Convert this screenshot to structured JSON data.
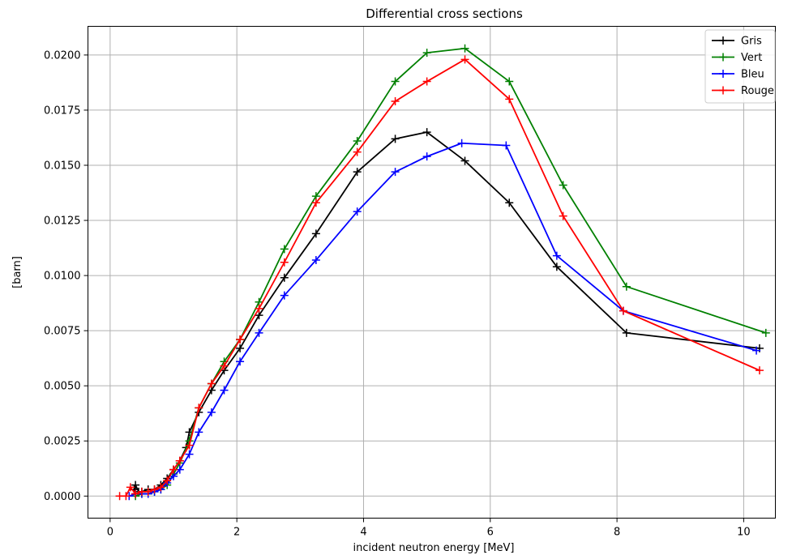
{
  "chart_data": {
    "type": "line",
    "title": "Differential cross sections",
    "xlabel": "incident neutron energy [MeV]",
    "ylabel": "[barn]",
    "xlim": [
      -0.35,
      10.5
    ],
    "ylim": [
      -0.001,
      0.0213
    ],
    "xticks": [
      0,
      2,
      4,
      6,
      8,
      10
    ],
    "xtick_labels": [
      "0",
      "2",
      "4",
      "6",
      "8",
      "10"
    ],
    "yticks": [
      0,
      0.0025,
      0.005,
      0.0075,
      0.01,
      0.0125,
      0.015,
      0.0175,
      0.02
    ],
    "ytick_labels": [
      "0.0000",
      "0.0025",
      "0.0050",
      "0.0075",
      "0.0100",
      "0.0125",
      "0.0150",
      "0.0175",
      "0.0200"
    ],
    "grid": true,
    "legend_position": "top-right",
    "marker": "plus",
    "series": [
      {
        "name": "Gris",
        "color": "#000000",
        "points": [
          [
            0.38,
            0.0003
          ],
          [
            0.4,
            0.0005
          ],
          [
            0.45,
            0.0002
          ],
          [
            0.5,
            0.0002
          ],
          [
            0.6,
            0.0003
          ],
          [
            0.7,
            0.0003
          ],
          [
            0.8,
            0.0005
          ],
          [
            0.9,
            0.0008
          ],
          [
            1.0,
            0.0012
          ],
          [
            1.1,
            0.0016
          ],
          [
            1.2,
            0.0022
          ],
          [
            1.25,
            0.0029
          ],
          [
            1.4,
            0.0038
          ],
          [
            1.6,
            0.0048
          ],
          [
            1.8,
            0.0057
          ],
          [
            2.05,
            0.0067
          ],
          [
            2.35,
            0.0082
          ],
          [
            2.75,
            0.0099
          ],
          [
            3.25,
            0.0119
          ],
          [
            3.9,
            0.0147
          ],
          [
            4.5,
            0.0162
          ],
          [
            5.0,
            0.0165
          ],
          [
            5.6,
            0.0152
          ],
          [
            6.3,
            0.0133
          ],
          [
            7.05,
            0.0104
          ],
          [
            8.15,
            0.0074
          ],
          [
            10.25,
            0.0067
          ]
        ]
      },
      {
        "name": "Vert",
        "color": "#008000",
        "points": [
          [
            0.4,
            0.0
          ],
          [
            0.5,
            0.0001
          ],
          [
            0.6,
            0.0001
          ],
          [
            0.7,
            0.0002
          ],
          [
            0.8,
            0.0003
          ],
          [
            0.9,
            0.0005
          ],
          [
            1.0,
            0.001
          ],
          [
            1.1,
            0.0015
          ],
          [
            1.25,
            0.0025
          ],
          [
            1.4,
            0.004
          ],
          [
            1.6,
            0.0051
          ],
          [
            1.8,
            0.0061
          ],
          [
            2.05,
            0.0071
          ],
          [
            2.35,
            0.0088
          ],
          [
            2.75,
            0.0112
          ],
          [
            3.25,
            0.0136
          ],
          [
            3.9,
            0.0161
          ],
          [
            4.5,
            0.0188
          ],
          [
            5.0,
            0.0201
          ],
          [
            5.6,
            0.0203
          ],
          [
            6.3,
            0.0188
          ],
          [
            7.15,
            0.0141
          ],
          [
            8.15,
            0.0095
          ],
          [
            10.35,
            0.0074
          ]
        ]
      },
      {
        "name": "Bleu",
        "color": "#0000ff",
        "points": [
          [
            0.3,
            0.0
          ],
          [
            0.4,
            0.0001
          ],
          [
            0.5,
            0.0001
          ],
          [
            0.6,
            0.0001
          ],
          [
            0.7,
            0.0002
          ],
          [
            0.8,
            0.0003
          ],
          [
            0.9,
            0.0006
          ],
          [
            1.0,
            0.0009
          ],
          [
            1.1,
            0.0012
          ],
          [
            1.25,
            0.0019
          ],
          [
            1.4,
            0.0029
          ],
          [
            1.6,
            0.0038
          ],
          [
            1.8,
            0.0048
          ],
          [
            2.05,
            0.0061
          ],
          [
            2.35,
            0.0074
          ],
          [
            2.75,
            0.0091
          ],
          [
            3.25,
            0.0107
          ],
          [
            3.9,
            0.0129
          ],
          [
            4.5,
            0.0147
          ],
          [
            5.0,
            0.0154
          ],
          [
            5.55,
            0.016
          ],
          [
            6.25,
            0.0159
          ],
          [
            7.05,
            0.0109
          ],
          [
            8.1,
            0.0084
          ],
          [
            10.2,
            0.0066
          ]
        ]
      },
      {
        "name": "Rouge",
        "color": "#ff0000",
        "points": [
          [
            0.15,
            0.0
          ],
          [
            0.25,
            0.0
          ],
          [
            0.32,
            0.0004
          ],
          [
            0.4,
            0.0001
          ],
          [
            0.5,
            0.0002
          ],
          [
            0.6,
            0.0002
          ],
          [
            0.7,
            0.0003
          ],
          [
            0.8,
            0.0004
          ],
          [
            0.9,
            0.0007
          ],
          [
            1.0,
            0.0012
          ],
          [
            1.1,
            0.0016
          ],
          [
            1.25,
            0.0023
          ],
          [
            1.4,
            0.004
          ],
          [
            1.6,
            0.0051
          ],
          [
            1.8,
            0.0059
          ],
          [
            2.05,
            0.0071
          ],
          [
            2.35,
            0.0085
          ],
          [
            2.75,
            0.0106
          ],
          [
            3.25,
            0.0133
          ],
          [
            3.9,
            0.0156
          ],
          [
            4.5,
            0.0179
          ],
          [
            5.0,
            0.0188
          ],
          [
            5.6,
            0.0198
          ],
          [
            6.3,
            0.018
          ],
          [
            7.15,
            0.0127
          ],
          [
            8.1,
            0.0084
          ],
          [
            10.25,
            0.0057
          ]
        ]
      }
    ]
  }
}
